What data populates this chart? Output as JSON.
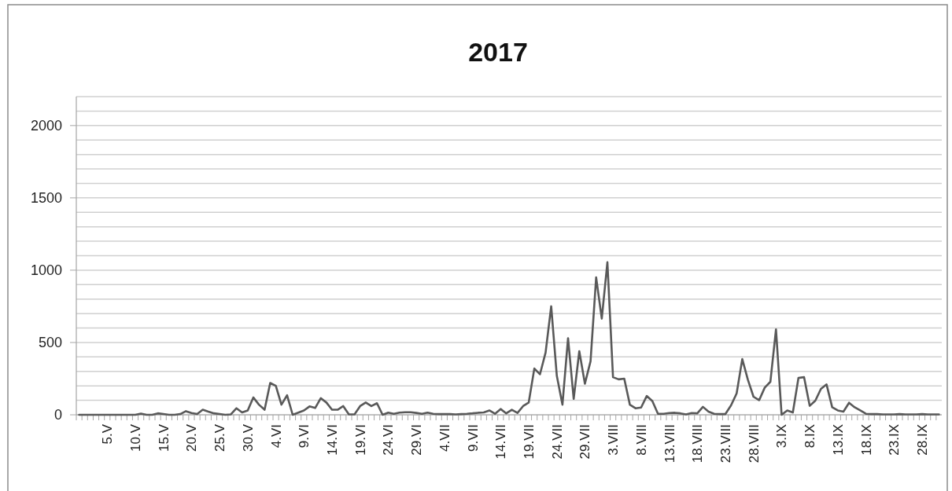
{
  "chart_data": {
    "type": "line",
    "title": "2017",
    "categories": [
      null,
      null,
      null,
      null,
      null,
      "5.V",
      null,
      null,
      null,
      null,
      "10.V",
      null,
      null,
      null,
      null,
      "15.V",
      null,
      null,
      null,
      null,
      "20.V",
      null,
      null,
      null,
      null,
      "25.V",
      null,
      null,
      null,
      null,
      "30.V",
      null,
      null,
      null,
      null,
      "4.VI",
      null,
      null,
      null,
      null,
      "9.VI",
      null,
      null,
      null,
      null,
      "14.VI",
      null,
      null,
      null,
      null,
      "19.VI",
      null,
      null,
      null,
      null,
      "24.VI",
      null,
      null,
      null,
      null,
      "29.VI",
      null,
      null,
      null,
      null,
      "4.VII",
      null,
      null,
      null,
      null,
      "9.VII",
      null,
      null,
      null,
      null,
      "14.VII",
      null,
      null,
      null,
      null,
      "19.VII",
      null,
      null,
      null,
      null,
      "24.VII",
      null,
      null,
      null,
      null,
      "29.VII",
      null,
      null,
      null,
      null,
      "3.VIII",
      null,
      null,
      null,
      null,
      "8.VIII",
      null,
      null,
      null,
      null,
      "13.VIII",
      null,
      null,
      null,
      null,
      "18.VIII",
      null,
      null,
      null,
      null,
      "23.VIII",
      null,
      null,
      null,
      null,
      "28.VIII",
      null,
      null,
      null,
      null,
      "3.IX",
      null,
      null,
      null,
      null,
      "8.IX",
      null,
      null,
      null,
      null,
      "13.IX",
      null,
      null,
      null,
      null,
      "18.IX",
      null,
      null,
      null,
      null,
      "23.IX",
      null,
      null,
      null,
      null,
      "28.IX",
      null,
      null,
      null
    ],
    "series": [
      {
        "color": "#595959",
        "values": [
          0,
          0,
          0,
          0,
          0,
          0,
          0,
          0,
          0,
          0,
          0,
          8,
          0,
          0,
          10,
          5,
          0,
          0,
          5,
          25,
          12,
          5,
          35,
          22,
          10,
          5,
          0,
          3,
          45,
          16,
          30,
          120,
          70,
          35,
          220,
          200,
          70,
          135,
          0,
          15,
          30,
          58,
          47,
          115,
          85,
          35,
          35,
          60,
          3,
          3,
          60,
          85,
          60,
          80,
          0,
          15,
          7,
          15,
          18,
          18,
          13,
          7,
          15,
          7,
          5,
          5,
          5,
          3,
          5,
          7,
          10,
          14,
          16,
          30,
          7,
          40,
          10,
          35,
          13,
          60,
          85,
          320,
          280,
          430,
          750,
          270,
          70,
          530,
          110,
          440,
          215,
          370,
          950,
          665,
          1055,
          260,
          245,
          250,
          70,
          45,
          50,
          130,
          95,
          7,
          7,
          12,
          14,
          10,
          3,
          12,
          10,
          55,
          22,
          7,
          5,
          5,
          65,
          148,
          385,
          242,
          125,
          101,
          188,
          228,
          590,
          0,
          30,
          16,
          255,
          260,
          62,
          98,
          179,
          210,
          52,
          30,
          22,
          83,
          52,
          30,
          7,
          5,
          5,
          3,
          3,
          3,
          5,
          3,
          3,
          3,
          5,
          3,
          3,
          3
        ]
      }
    ],
    "ylim": [
      0,
      2200
    ],
    "yticks": [
      0,
      {
        "value": 100,
        "label": null
      },
      {
        "value": 200,
        "label": null
      },
      {
        "value": 300,
        "label": null
      },
      {
        "value": 400,
        "label": null
      },
      500,
      {
        "value": 600,
        "label": null
      },
      {
        "value": 700,
        "label": null
      },
      {
        "value": 800,
        "label": null
      },
      {
        "value": 900,
        "label": null
      },
      1000,
      {
        "value": 1100,
        "label": null
      },
      {
        "value": 1200,
        "label": null
      },
      {
        "value": 1300,
        "label": null
      },
      {
        "value": 1400,
        "label": null
      },
      1500,
      {
        "value": 1600,
        "label": null
      },
      {
        "value": 1700,
        "label": null
      },
      {
        "value": 1800,
        "label": null
      },
      {
        "value": 1900,
        "label": null
      },
      2000,
      {
        "value": 2100,
        "label": null
      },
      {
        "value": 2200,
        "label": null
      }
    ],
    "grid": true,
    "marker": "none",
    "line_style": "solid"
  }
}
